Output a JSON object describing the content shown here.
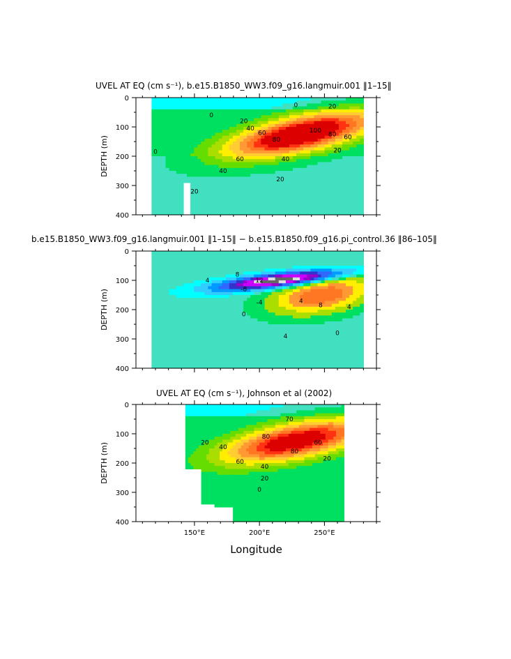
{
  "chart_data": [
    {
      "type": "heatmap",
      "title": "UVEL AT EQ (cm s⁻¹), b.e15.B1850_WW3.f09_g16.langmuir.001  ‖1–15‖",
      "ylabel": "DEPTH (m)",
      "xlabel": "",
      "xlim": [
        105,
        290
      ],
      "ylim": [
        400,
        0
      ],
      "y_ticks": [
        "0",
        "100",
        "200",
        "300",
        "400"
      ],
      "x_ticks": [],
      "x_range_filled": [
        117,
        280
      ],
      "jet_core": {
        "x": 230,
        "y": 125,
        "max": 100
      },
      "contour_labels": [
        {
          "text": "20",
          "x": 256,
          "y": 30
        },
        {
          "text": "0",
          "x": 163,
          "y": 60
        },
        {
          "text": "0",
          "x": 228,
          "y": 25
        },
        {
          "text": "20",
          "x": 188,
          "y": 80
        },
        {
          "text": "40",
          "x": 193,
          "y": 105
        },
        {
          "text": "60",
          "x": 202,
          "y": 120
        },
        {
          "text": "80",
          "x": 213,
          "y": 143
        },
        {
          "text": "100",
          "x": 243,
          "y": 112
        },
        {
          "text": "80",
          "x": 256,
          "y": 125
        },
        {
          "text": "60",
          "x": 268,
          "y": 135
        },
        {
          "text": "40",
          "x": 220,
          "y": 210
        },
        {
          "text": "60",
          "x": 185,
          "y": 210
        },
        {
          "text": "40",
          "x": 172,
          "y": 250
        },
        {
          "text": "20",
          "x": 216,
          "y": 278
        },
        {
          "text": "20",
          "x": 260,
          "y": 180
        },
        {
          "text": "20",
          "x": 150,
          "y": 320
        },
        {
          "text": "0",
          "x": 120,
          "y": 185
        }
      ]
    },
    {
      "type": "heatmap",
      "title": "b.e15.B1850_WW3.f09_g16.langmuir.001  ‖1–15‖ − b.e15.B1850.f09_g16.pi_control.36  ‖86–105‖",
      "ylabel": "DEPTH (m)",
      "xlabel": "",
      "xlim": [
        105,
        290
      ],
      "ylim": [
        400,
        0
      ],
      "y_ticks": [
        "0",
        "100",
        "200",
        "300",
        "400"
      ],
      "x_ticks": [],
      "x_range_filled": [
        117,
        280
      ],
      "contour_labels": [
        {
          "text": "8",
          "x": 183,
          "y": 80
        },
        {
          "text": "4",
          "x": 160,
          "y": 100
        },
        {
          "text": "12",
          "x": 200,
          "y": 100
        },
        {
          "text": "-8",
          "x": 188,
          "y": 130
        },
        {
          "text": "-4",
          "x": 200,
          "y": 175
        },
        {
          "text": "0",
          "x": 188,
          "y": 215
        },
        {
          "text": "4",
          "x": 232,
          "y": 170
        },
        {
          "text": "8",
          "x": 247,
          "y": 185
        },
        {
          "text": "4",
          "x": 269,
          "y": 190
        },
        {
          "text": "4",
          "x": 220,
          "y": 290
        },
        {
          "text": "0",
          "x": 260,
          "y": 280
        }
      ]
    },
    {
      "type": "heatmap",
      "title": "UVEL AT EQ (cm s⁻¹), Johnson et al (2002)",
      "ylabel": "DEPTH (m)",
      "xlabel": "Longitude",
      "xlim": [
        105,
        290
      ],
      "ylim": [
        400,
        0
      ],
      "y_ticks": [
        "0",
        "100",
        "200",
        "300",
        "400"
      ],
      "x_ticks": [
        "150°E",
        "200°E",
        "250°E"
      ],
      "x_range_filled": [
        143,
        265
      ],
      "jet_core": {
        "x": 225,
        "y": 130,
        "max": 90
      },
      "contour_labels": [
        {
          "text": "20",
          "x": 158,
          "y": 130
        },
        {
          "text": "40",
          "x": 172,
          "y": 145
        },
        {
          "text": "60",
          "x": 185,
          "y": 195
        },
        {
          "text": "80",
          "x": 205,
          "y": 110
        },
        {
          "text": "80",
          "x": 227,
          "y": 160
        },
        {
          "text": "60",
          "x": 245,
          "y": 130
        },
        {
          "text": "40",
          "x": 204,
          "y": 212
        },
        {
          "text": "20",
          "x": 204,
          "y": 252
        },
        {
          "text": "0",
          "x": 200,
          "y": 290
        },
        {
          "text": "20",
          "x": 252,
          "y": 185
        },
        {
          "text": "70",
          "x": 223,
          "y": 50
        }
      ]
    }
  ],
  "colors": {
    "levels": [
      "#00ffff",
      "#33ccff",
      "#0099ff",
      "#3366ff",
      "#3333cc",
      "#9900cc",
      "#cc00ff",
      "#ff66ff",
      "#dddddd",
      "#666666"
    ],
    "positive": [
      "#40e0c0",
      "#00e060",
      "#66dd00",
      "#aadd00",
      "#ffee00",
      "#ffcc33",
      "#ff9933",
      "#ff7722",
      "#ff3311",
      "#dd0000"
    ]
  }
}
